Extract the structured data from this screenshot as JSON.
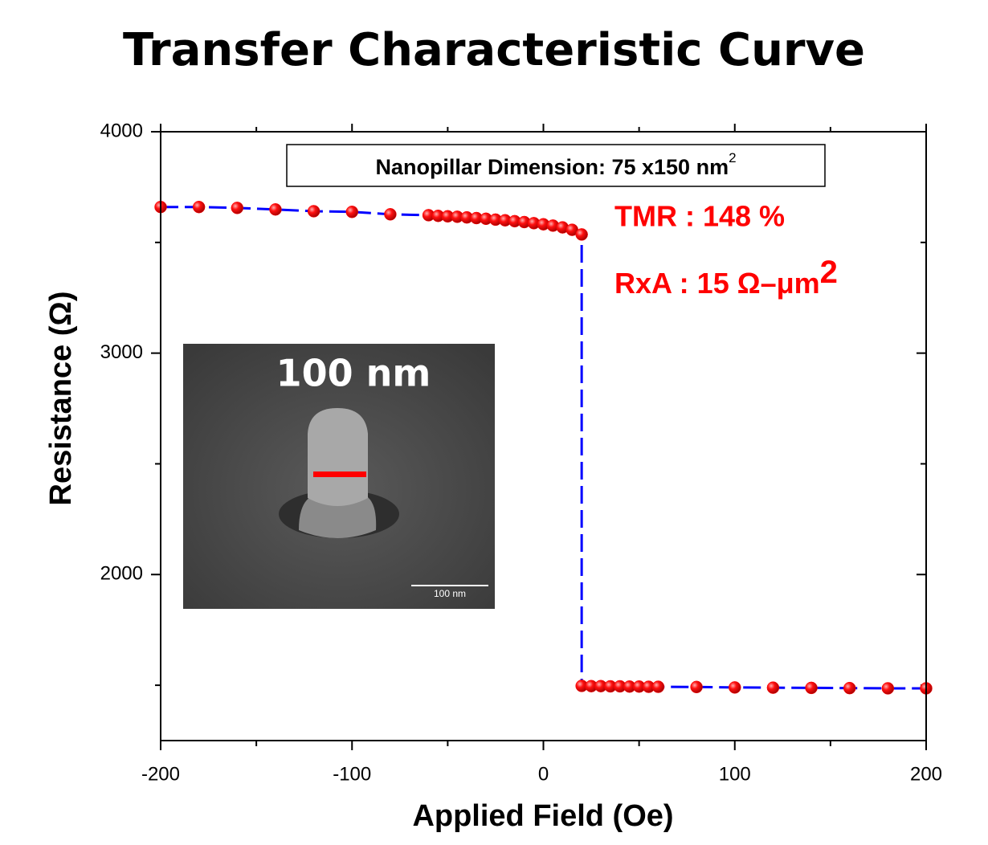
{
  "chart_data": {
    "type": "line",
    "title": "Transfer Characteristic Curve",
    "xlabel": "Applied Field (Oe)",
    "ylabel": "Resistance (Ω)",
    "x": [
      -200,
      -180,
      -160,
      -140,
      -120,
      -100,
      -80,
      -60,
      -55,
      -50,
      -45,
      -40,
      -35,
      -30,
      -25,
      -20,
      -15,
      -10,
      -5,
      0,
      5,
      10,
      15,
      20,
      20,
      25,
      30,
      35,
      40,
      45,
      50,
      55,
      60,
      80,
      100,
      120,
      140,
      160,
      180,
      200
    ],
    "series": [
      {
        "color": "#0000ff",
        "marker_color": "#ff0000",
        "values": [
          3660,
          3660,
          3656,
          3649,
          3641,
          3638,
          3627,
          3623,
          3620,
          3618,
          3616,
          3613,
          3610,
          3607,
          3603,
          3600,
          3596,
          3592,
          3587,
          3582,
          3576,
          3568,
          3557,
          3536,
          1497,
          1496,
          1496,
          1495,
          1495,
          1494,
          1494,
          1493,
          1493,
          1492,
          1490,
          1489,
          1488,
          1487,
          1486,
          1486
        ]
      }
    ],
    "xlim": [
      -200,
      200
    ],
    "xticks": [
      -200,
      -100,
      0,
      100,
      200
    ],
    "xminorticks": [
      -150,
      -50,
      50,
      150
    ],
    "ylim": [
      1250,
      4000
    ],
    "yticks": [
      2000,
      3000,
      4000
    ],
    "yminorticks": [
      1500,
      2500,
      3500
    ],
    "box_annotation": {
      "text": "Nanopillar Dimension: 75 x150 nm",
      "sup": "2"
    },
    "annotations": [
      {
        "text": "TMR : 148 %"
      },
      {
        "text": "RxA : 15 Ω–μm",
        "sup": "2"
      }
    ],
    "inset": {
      "label": "100 nm",
      "scale_label": "100 nm"
    }
  }
}
